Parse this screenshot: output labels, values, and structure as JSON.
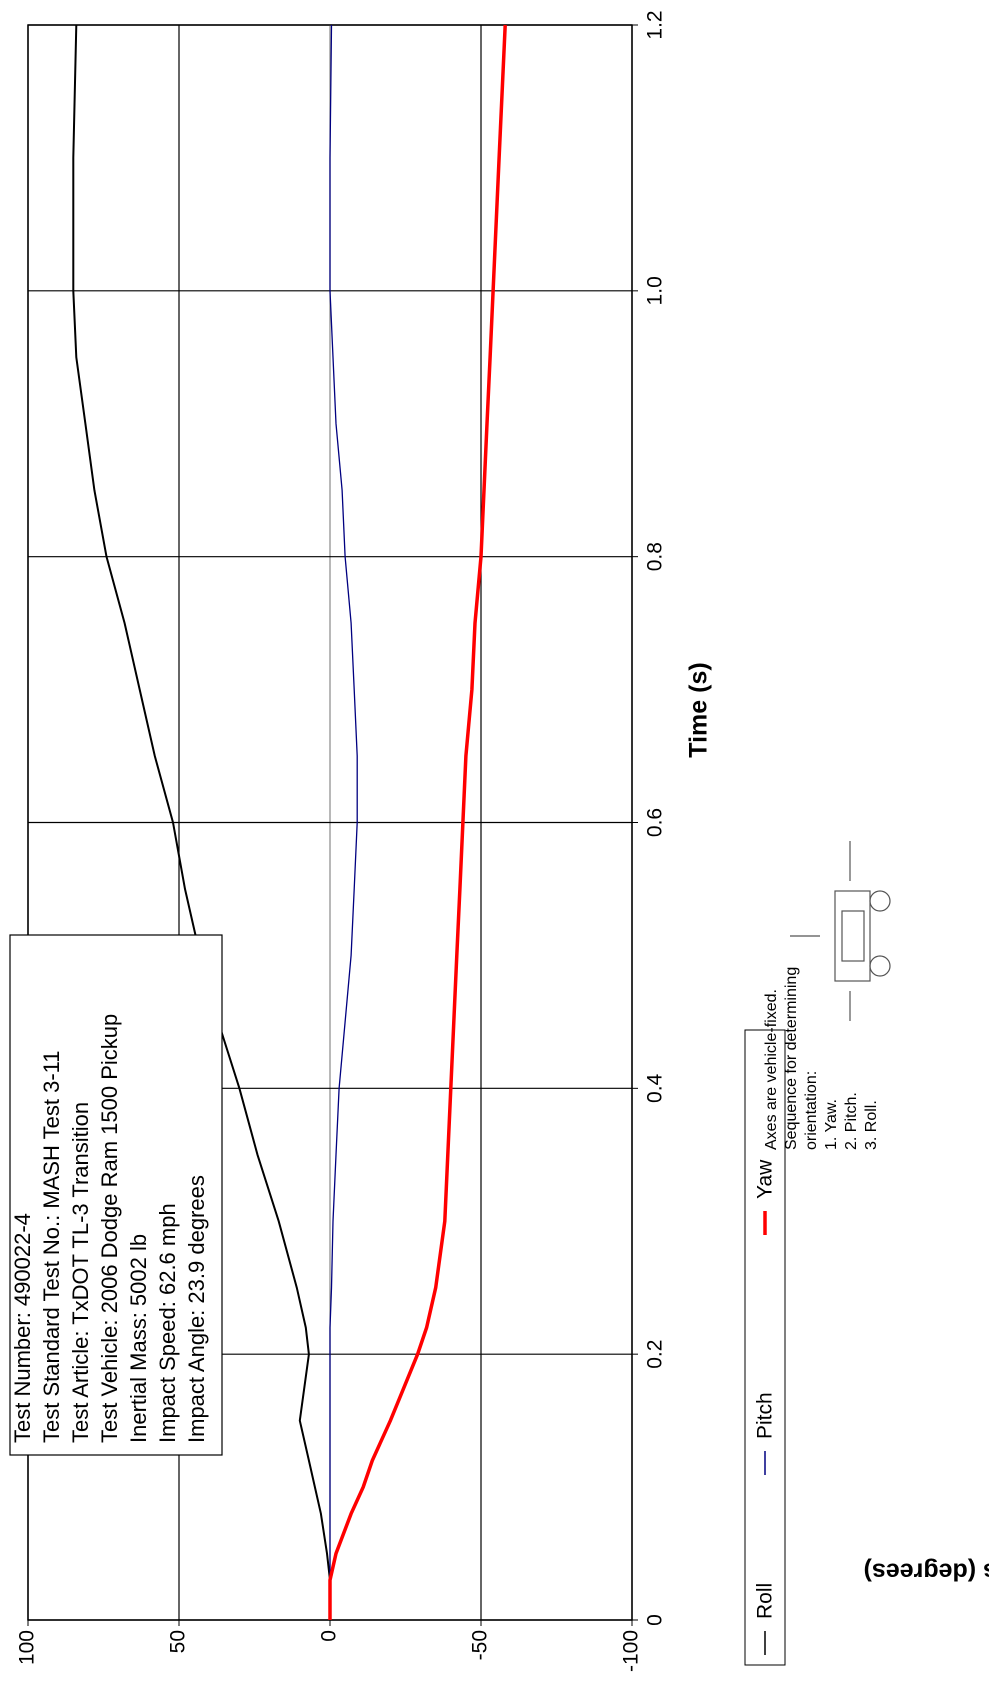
{
  "chart_data": {
    "type": "line",
    "x_label": "Time (s)",
    "y_label": "Angles (degrees)",
    "x": [
      0,
      0.03,
      0.05,
      0.08,
      0.1,
      0.12,
      0.15,
      0.2,
      0.22,
      0.25,
      0.3,
      0.35,
      0.4,
      0.45,
      0.5,
      0.55,
      0.6,
      0.65,
      0.7,
      0.75,
      0.8,
      0.85,
      0.9,
      0.95,
      1.0,
      1.1,
      1.2
    ],
    "series": [
      {
        "name": "Roll",
        "color": "#000000",
        "values": [
          0,
          0,
          1,
          3,
          5,
          7,
          10,
          7,
          8,
          11,
          17,
          24,
          30,
          37,
          43,
          48,
          52,
          58,
          63,
          68,
          74,
          78,
          81,
          84,
          85,
          85,
          84
        ]
      },
      {
        "name": "Pitch",
        "color": "#000080",
        "values": [
          0,
          0,
          0,
          0,
          0,
          0,
          0,
          0,
          0,
          -0.5,
          -1,
          -2,
          -3,
          -5,
          -7,
          -8,
          -9,
          -9,
          -8,
          -7,
          -5,
          -4,
          -2,
          -1,
          0,
          0,
          -0.5
        ]
      },
      {
        "name": "Yaw",
        "color": "#ff0000",
        "values": [
          0,
          0,
          -2,
          -7,
          -11,
          -14,
          -20,
          -29,
          -32,
          -35,
          -38,
          -39,
          -40,
          -41,
          -42,
          -43,
          -44,
          -45,
          -47,
          -48,
          -50,
          -51,
          -52,
          -53,
          -54,
          -56,
          -58
        ]
      }
    ],
    "xlim": [
      0,
      1.2
    ],
    "xticks": [
      0,
      0.2,
      0.4,
      0.6,
      0.8,
      {
        "value": 1,
        "label": "1.0"
      },
      1.2
    ],
    "ylim": [
      -100,
      100
    ],
    "yticks": [
      -100,
      -50,
      0,
      50,
      100
    ],
    "grid": true,
    "legend": "bottom",
    "info_box": [
      "Test Number: 490022-4",
      "Test Standard Test No.: MASH Test 3-11",
      "Test Article: TxDOT TL-3 Transition",
      "Test Vehicle: 2006 Dodge Ram 1500 Pickup",
      "Inertial Mass: 5002 lb",
      "Impact Speed: 62.6 mph",
      "Impact Angle: 23.9 degrees"
    ],
    "notes": [
      "Axes are vehicle-fixed.",
      "Sequence for determining",
      "orientation:",
      "1.   Yaw.",
      "2.   Pitch.",
      "3.   Roll."
    ]
  }
}
